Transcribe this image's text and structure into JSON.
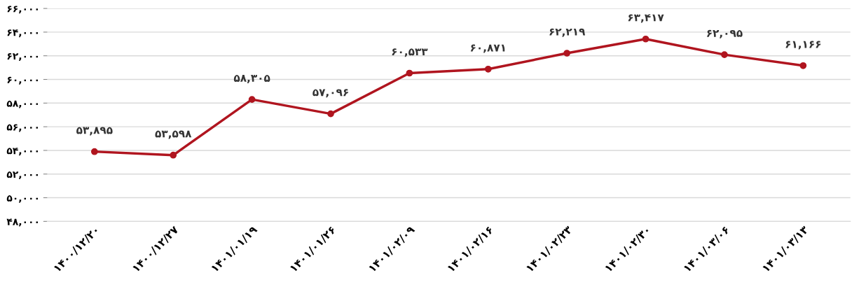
{
  "chart_data": {
    "type": "line",
    "categories": [
      "۱۴۰۰/۱۲/۲۰",
      "۱۴۰۰/۱۲/۲۷",
      "۱۴۰۱/۰۱/۱۹",
      "۱۴۰۱/۰۱/۲۶",
      "۱۴۰۱/۰۲/۰۹",
      "۱۴۰۱/۰۲/۱۶",
      "۱۴۰۱/۰۲/۲۳",
      "۱۴۰۱/۰۲/۳۰",
      "۱۴۰۱/۰۳/۰۶",
      "۱۴۰۱/۰۳/۱۳"
    ],
    "series": [
      {
        "color": "#b0151f",
        "values": [
          53895,
          53598,
          58305,
          57096,
          60533,
          60871,
          62219,
          63417,
          62095,
          61166
        ],
        "value_labels": [
          "۵۳,۸۹۵",
          "۵۳,۵۹۸",
          "۵۸,۳۰۵",
          "۵۷,۰۹۶",
          "۶۰,۵۳۳",
          "۶۰,۸۷۱",
          "۶۲,۲۱۹",
          "۶۳,۴۱۷",
          "۶۲,۰۹۵",
          "۶۱,۱۶۶"
        ]
      }
    ],
    "ylim": [
      48000,
      66000
    ],
    "yticks": [
      {
        "value": 48000,
        "label": "۴۸,۰۰۰"
      },
      {
        "value": 50000,
        "label": "۵۰,۰۰۰"
      },
      {
        "value": 52000,
        "label": "۵۲,۰۰۰"
      },
      {
        "value": 54000,
        "label": "۵۴,۰۰۰"
      },
      {
        "value": 56000,
        "label": "۵۶,۰۰۰"
      },
      {
        "value": 58000,
        "label": "۵۸,۰۰۰"
      },
      {
        "value": 60000,
        "label": "۶۰,۰۰۰"
      },
      {
        "value": 62000,
        "label": "۶۲,۰۰۰"
      },
      {
        "value": 64000,
        "label": "۶۴,۰۰۰"
      },
      {
        "value": 66000,
        "label": "۶۶,۰۰۰"
      }
    ],
    "grid": "y",
    "marker": "circle",
    "line_style": "solid"
  }
}
